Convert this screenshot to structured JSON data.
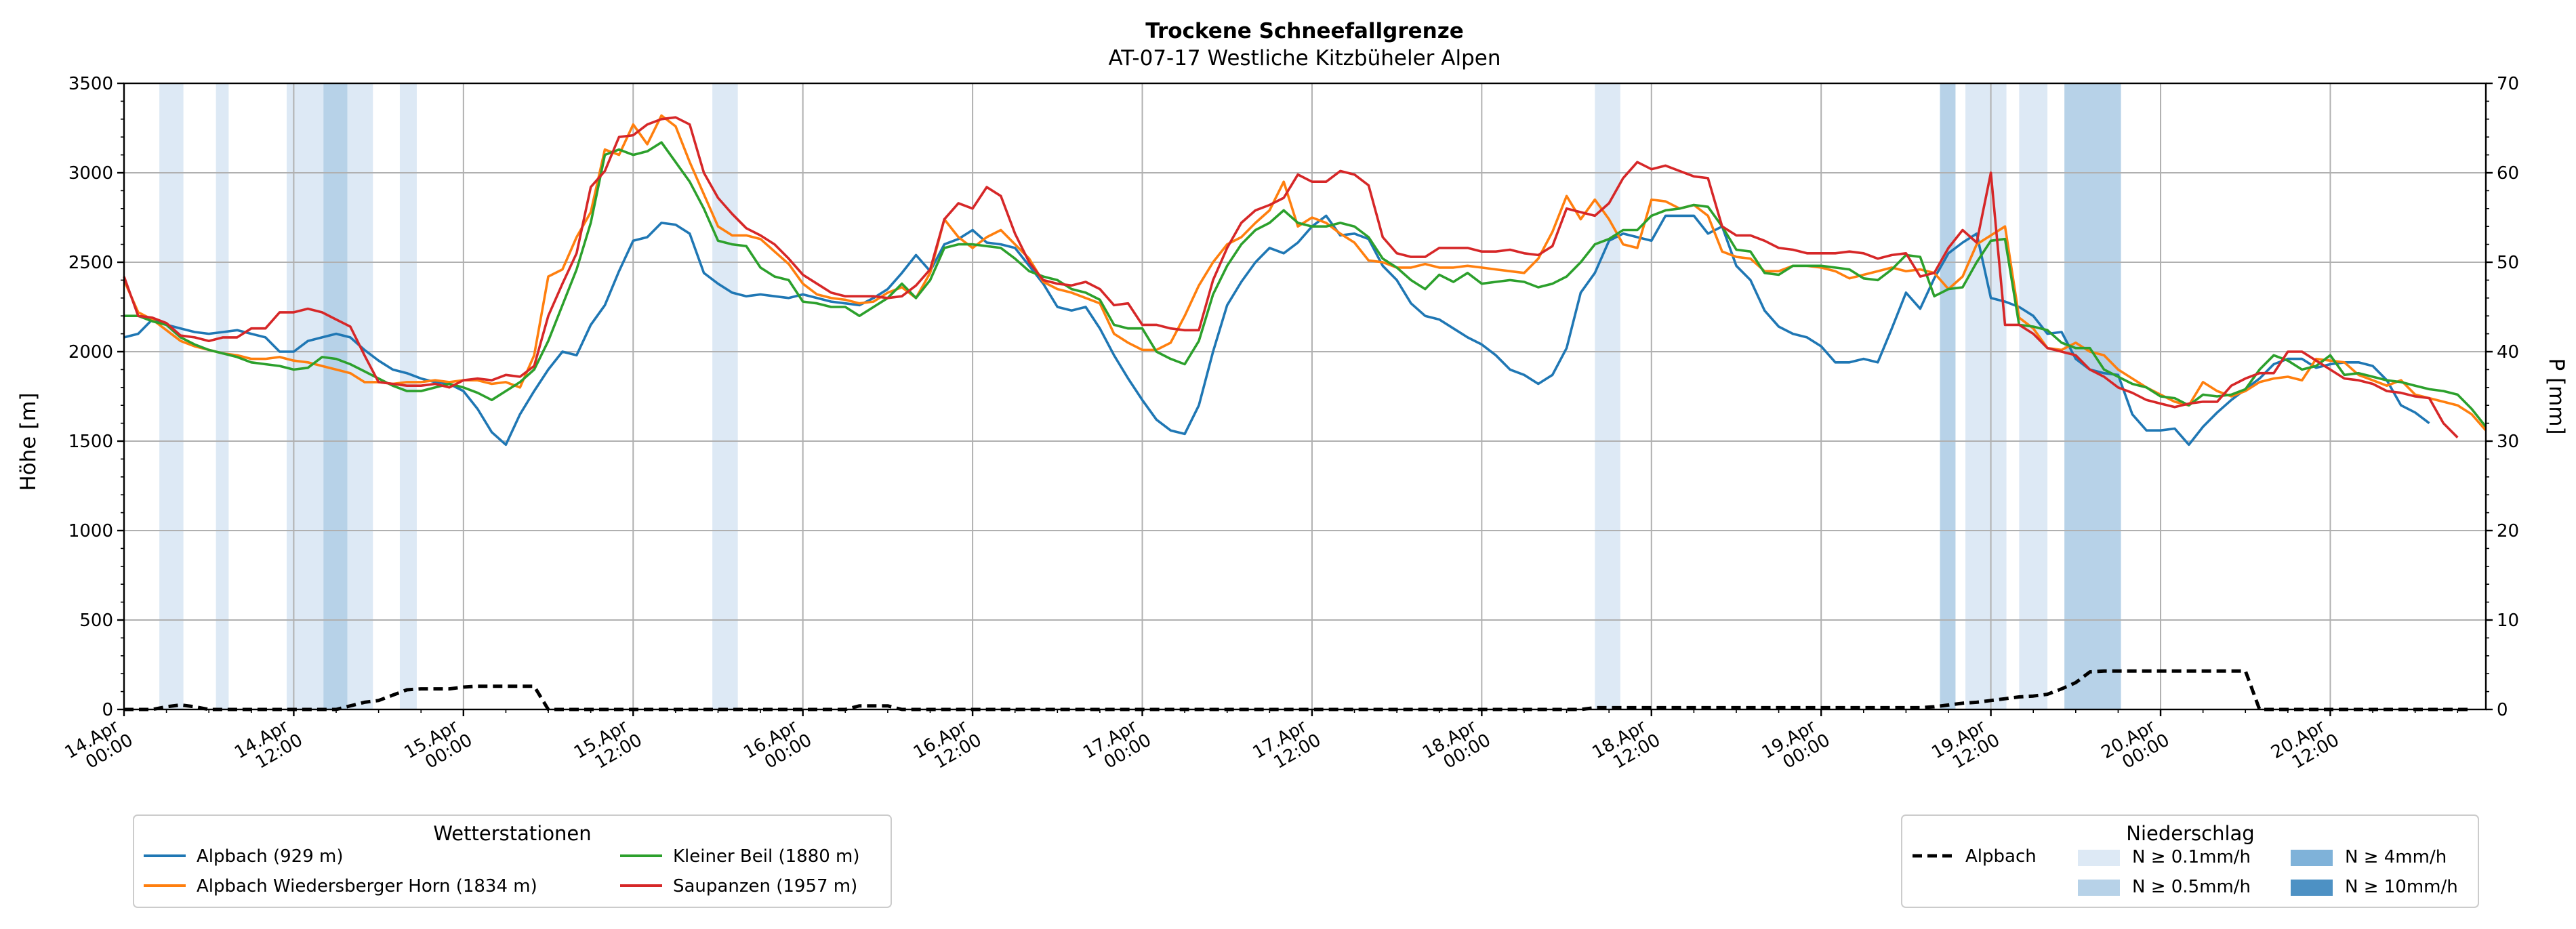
{
  "chart_data": {
    "type": "line",
    "title": "Trockene Schneefallgrenze",
    "subtitle": "AT-07-17 Westliche Kitzbüheler Alpen",
    "ylabel_left": "Höhe [m]",
    "ylabel_right": "P [mm]",
    "ylim_left": [
      0,
      3500
    ],
    "ylim_right": [
      0,
      70
    ],
    "yticks_left": [
      "0",
      "500",
      "1000",
      "1500",
      "2000",
      "2500",
      "3000",
      "3500"
    ],
    "yticks_right": [
      "0",
      "10",
      "20",
      "30",
      "40",
      "50",
      "60",
      "70"
    ],
    "x_start": "14.Apr 00:00",
    "x_step_hours": 1,
    "x_range_hours": [
      0,
      167
    ],
    "xtick_labels": [
      [
        "14.Apr",
        "00:00"
      ],
      [
        "14.Apr",
        "12:00"
      ],
      [
        "15.Apr",
        "00:00"
      ],
      [
        "15.Apr",
        "12:00"
      ],
      [
        "16.Apr",
        "00:00"
      ],
      [
        "16.Apr",
        "12:00"
      ],
      [
        "17.Apr",
        "00:00"
      ],
      [
        "17.Apr",
        "12:00"
      ],
      [
        "18.Apr",
        "00:00"
      ],
      [
        "18.Apr",
        "12:00"
      ],
      [
        "19.Apr",
        "00:00"
      ],
      [
        "19.Apr",
        "12:00"
      ],
      [
        "20.Apr",
        "00:00"
      ],
      [
        "20.Apr",
        "12:00"
      ]
    ],
    "grid": true,
    "series": [
      {
        "name": "Alpbach (929 m)",
        "color": "#1f77b4",
        "values": [
          2080,
          2100,
          2180,
          2150,
          2130,
          2110,
          2100,
          2110,
          2120,
          2100,
          2080,
          2000,
          2000,
          2060,
          2080,
          2100,
          2080,
          2010,
          1950,
          1900,
          1880,
          1850,
          1830,
          1820,
          1780,
          1680,
          1550,
          1480,
          1650,
          1780,
          1900,
          2000,
          1980,
          2150,
          2260,
          2450,
          2620,
          2640,
          2720,
          2710,
          2660,
          2440,
          2380,
          2330,
          2310,
          2320,
          2310,
          2300,
          2320,
          2300,
          2280,
          2270,
          2260,
          2300,
          2350,
          2440,
          2540,
          2450,
          2600,
          2630,
          2680,
          2610,
          2600,
          2580,
          2480,
          2380,
          2250,
          2230,
          2250,
          2130,
          1980,
          1850,
          1730,
          1620,
          1560,
          1540,
          1700,
          2000,
          2260,
          2390,
          2500,
          2580,
          2550,
          2610,
          2700,
          2760,
          2650,
          2660,
          2630,
          2480,
          2400,
          2270,
          2200,
          2180,
          2130,
          2080,
          2040,
          1980,
          1900,
          1870,
          1820,
          1870,
          2020,
          2330,
          2440,
          2620,
          2660,
          2640,
          2620,
          2760,
          2760,
          2760,
          2660,
          2700,
          2480,
          2400,
          2230,
          2140,
          2100,
          2080,
          2030,
          1940,
          1940,
          1960,
          1940,
          2130,
          2330,
          2240,
          2410,
          2550,
          2610,
          2660,
          2300,
          2280,
          2250,
          2200,
          2100,
          2110,
          1960,
          1900,
          1880,
          1870,
          1650,
          1560,
          1560,
          1570,
          1480,
          1580,
          1660,
          1730,
          1790,
          1850,
          1930,
          1960,
          1960,
          1910,
          1930,
          1940,
          1940,
          1920,
          1840,
          1700,
          1660,
          1600
        ]
      },
      {
        "name": "Alpbach Wiedersberger Horn (1834 m)",
        "color": "#ff7f0e",
        "values": [
          2400,
          2220,
          2180,
          2120,
          2060,
          2030,
          2010,
          1990,
          1980,
          1960,
          1960,
          1970,
          1950,
          1940,
          1920,
          1900,
          1880,
          1830,
          1830,
          1820,
          1830,
          1830,
          1840,
          1830,
          1840,
          1840,
          1820,
          1830,
          1800,
          1980,
          2420,
          2460,
          2640,
          2780,
          3130,
          3100,
          3270,
          3160,
          3320,
          3260,
          3060,
          2880,
          2700,
          2650,
          2650,
          2630,
          2560,
          2490,
          2380,
          2320,
          2300,
          2290,
          2270,
          2280,
          2330,
          2360,
          2300,
          2440,
          2740,
          2640,
          2580,
          2640,
          2680,
          2600,
          2520,
          2390,
          2350,
          2330,
          2300,
          2270,
          2100,
          2050,
          2010,
          2010,
          2050,
          2200,
          2370,
          2500,
          2600,
          2640,
          2720,
          2790,
          2950,
          2700,
          2750,
          2720,
          2660,
          2610,
          2510,
          2500,
          2470,
          2470,
          2490,
          2470,
          2470,
          2480,
          2470,
          2460,
          2450,
          2440,
          2520,
          2670,
          2870,
          2740,
          2850,
          2740,
          2600,
          2580,
          2850,
          2840,
          2800,
          2820,
          2760,
          2560,
          2530,
          2520,
          2450,
          2450,
          2480,
          2480,
          2470,
          2450,
          2410,
          2430,
          2450,
          2470,
          2450,
          2460,
          2440,
          2350,
          2420,
          2600,
          2650,
          2700,
          2190,
          2130,
          2020,
          2010,
          2050,
          2000,
          1980,
          1900,
          1850,
          1800,
          1760,
          1720,
          1700,
          1830,
          1780,
          1750,
          1780,
          1830,
          1850,
          1860,
          1840,
          1960,
          1950,
          1940,
          1870,
          1840,
          1810,
          1840,
          1760,
          1740,
          1720,
          1700,
          1650,
          1560
        ]
      },
      {
        "name": "Kleiner Beil (1880 m)",
        "color": "#2ca02c",
        "values": [
          2200,
          2200,
          2170,
          2150,
          2080,
          2040,
          2010,
          1990,
          1970,
          1940,
          1930,
          1920,
          1900,
          1910,
          1970,
          1960,
          1930,
          1890,
          1850,
          1810,
          1780,
          1780,
          1800,
          1820,
          1800,
          1770,
          1730,
          1780,
          1830,
          1900,
          2060,
          2260,
          2460,
          2720,
          3100,
          3130,
          3100,
          3120,
          3170,
          3060,
          2950,
          2800,
          2620,
          2600,
          2590,
          2470,
          2420,
          2400,
          2280,
          2270,
          2250,
          2250,
          2200,
          2250,
          2300,
          2380,
          2300,
          2400,
          2580,
          2600,
          2600,
          2590,
          2580,
          2520,
          2450,
          2420,
          2400,
          2350,
          2330,
          2290,
          2150,
          2130,
          2130,
          2000,
          1960,
          1930,
          2060,
          2320,
          2480,
          2600,
          2680,
          2720,
          2790,
          2720,
          2700,
          2700,
          2720,
          2700,
          2640,
          2520,
          2470,
          2400,
          2350,
          2430,
          2390,
          2440,
          2380,
          2390,
          2400,
          2390,
          2360,
          2380,
          2420,
          2500,
          2600,
          2630,
          2680,
          2680,
          2760,
          2790,
          2800,
          2820,
          2810,
          2700,
          2570,
          2560,
          2440,
          2430,
          2480,
          2480,
          2480,
          2470,
          2460,
          2410,
          2400,
          2460,
          2540,
          2530,
          2310,
          2350,
          2360,
          2500,
          2620,
          2630,
          2150,
          2140,
          2120,
          2050,
          2020,
          2020,
          1900,
          1860,
          1820,
          1800,
          1750,
          1740,
          1700,
          1760,
          1750,
          1760,
          1790,
          1900,
          1980,
          1950,
          1900,
          1920,
          1980,
          1870,
          1880,
          1860,
          1840,
          1830,
          1810,
          1790,
          1780,
          1760,
          1680,
          1580
        ]
      },
      {
        "name": "Saupanzen (1957 m)",
        "color": "#d62728",
        "values": [
          2420,
          2200,
          2190,
          2160,
          2090,
          2080,
          2060,
          2080,
          2080,
          2130,
          2130,
          2220,
          2220,
          2240,
          2220,
          2180,
          2140,
          1980,
          1830,
          1820,
          1810,
          1810,
          1820,
          1800,
          1840,
          1850,
          1840,
          1870,
          1860,
          1920,
          2200,
          2380,
          2550,
          2920,
          3010,
          3200,
          3210,
          3270,
          3300,
          3310,
          3270,
          3000,
          2860,
          2770,
          2690,
          2650,
          2600,
          2520,
          2430,
          2380,
          2330,
          2310,
          2310,
          2310,
          2300,
          2310,
          2370,
          2460,
          2740,
          2830,
          2800,
          2920,
          2870,
          2660,
          2500,
          2400,
          2380,
          2370,
          2390,
          2350,
          2260,
          2270,
          2150,
          2150,
          2130,
          2120,
          2120,
          2400,
          2580,
          2720,
          2790,
          2820,
          2860,
          2990,
          2950,
          2950,
          3010,
          2990,
          2930,
          2640,
          2550,
          2530,
          2530,
          2580,
          2580,
          2580,
          2560,
          2560,
          2570,
          2550,
          2540,
          2590,
          2800,
          2780,
          2760,
          2830,
          2970,
          3060,
          3020,
          3040,
          3010,
          2980,
          2970,
          2700,
          2650,
          2650,
          2620,
          2580,
          2570,
          2550,
          2550,
          2550,
          2560,
          2550,
          2520,
          2540,
          2550,
          2420,
          2440,
          2580,
          2680,
          2610,
          3000,
          2150,
          2150,
          2100,
          2020,
          2000,
          1980,
          1900,
          1860,
          1800,
          1770,
          1730,
          1710,
          1690,
          1710,
          1720,
          1720,
          1810,
          1850,
          1880,
          1880,
          2000,
          2000,
          1950,
          1900,
          1850,
          1840,
          1820,
          1780,
          1770,
          1750,
          1740,
          1600,
          1520
        ]
      },
      {
        "name": "Alpbach",
        "axis": "right",
        "style": "dashed",
        "color": "#000000",
        "values": [
          0,
          0,
          0,
          0.3,
          0.5,
          0.3,
          0,
          0,
          0,
          0,
          0,
          0,
          0,
          0,
          0,
          0,
          0.4,
          0.8,
          1,
          1.6,
          2.2,
          2.3,
          2.3,
          2.3,
          2.5,
          2.6,
          2.6,
          2.6,
          2.6,
          2.6,
          0,
          0,
          0,
          0,
          0,
          0,
          0,
          0,
          0,
          0,
          0,
          0,
          0,
          0,
          0,
          0,
          0,
          0,
          0,
          0,
          0,
          0,
          0.4,
          0.4,
          0.4,
          0,
          0,
          0,
          0,
          0,
          0,
          0,
          0,
          0,
          0,
          0,
          0,
          0,
          0,
          0,
          0,
          0,
          0,
          0,
          0,
          0,
          0,
          0,
          0,
          0,
          0,
          0,
          0,
          0,
          0,
          0,
          0,
          0,
          0,
          0,
          0,
          0,
          0,
          0,
          0,
          0,
          0,
          0,
          0,
          0,
          0,
          0,
          0,
          0,
          0.2,
          0.2,
          0.2,
          0.2,
          0.2,
          0.2,
          0.2,
          0.2,
          0.2,
          0.2,
          0.2,
          0.2,
          0.2,
          0.2,
          0.2,
          0.2,
          0.2,
          0.2,
          0.2,
          0.2,
          0.2,
          0.2,
          0.2,
          0.2,
          0.3,
          0.5,
          0.7,
          0.8,
          1,
          1.2,
          1.4,
          1.5,
          1.7,
          2.3,
          3,
          4.2,
          4.3,
          4.3,
          4.3,
          4.3,
          4.3,
          4.3,
          4.3,
          4.3,
          4.3,
          4.3,
          4.3,
          0,
          0,
          0,
          0,
          0,
          0,
          0,
          0,
          0,
          0,
          0,
          0,
          0,
          0,
          0,
          0
        ]
      }
    ],
    "precip_bands": [
      {
        "start": 2.5,
        "end": 4.2,
        "level": "N ≥ 0.1mm/h"
      },
      {
        "start": 6.5,
        "end": 7.4,
        "level": "N ≥ 0.1mm/h"
      },
      {
        "start": 11.5,
        "end": 14.1,
        "level": "N ≥ 0.1mm/h"
      },
      {
        "start": 14.1,
        "end": 15.8,
        "level": "N ≥ 0.5mm/h"
      },
      {
        "start": 15.8,
        "end": 17.6,
        "level": "N ≥ 0.1mm/h"
      },
      {
        "start": 19.5,
        "end": 20.7,
        "level": "N ≥ 0.1mm/h"
      },
      {
        "start": 41.6,
        "end": 43.4,
        "level": "N ≥ 0.1mm/h"
      },
      {
        "start": 104,
        "end": 105.8,
        "level": "N ≥ 0.1mm/h"
      },
      {
        "start": 128.4,
        "end": 129.5,
        "level": "N ≥ 0.5mm/h"
      },
      {
        "start": 130.2,
        "end": 131.9,
        "level": "N ≥ 0.1mm/h"
      },
      {
        "start": 131.9,
        "end": 133.1,
        "level": "N ≥ 0.1mm/h"
      },
      {
        "start": 134,
        "end": 136,
        "level": "N ≥ 0.1mm/h"
      },
      {
        "start": 137.2,
        "end": 141.2,
        "level": "N ≥ 0.5mm/h"
      }
    ],
    "legend_stations": {
      "title": "Wetterstationen",
      "placement": "bottom-left",
      "entries": [
        "Alpbach (929 m)",
        "Alpbach Wiedersberger Horn (1834 m)",
        "Kleiner Beil (1880 m)",
        "Saupanzen (1957 m)"
      ]
    },
    "legend_precip": {
      "title": "Niederschlag",
      "placement": "bottom-right",
      "line_entry": "Alpbach",
      "levels": [
        {
          "label": "N ≥ 0.1mm/h",
          "color": "#dde9f5"
        },
        {
          "label": "N ≥ 0.5mm/h",
          "color": "#b7d2e8"
        },
        {
          "label": "N ≥ 4mm/h",
          "color": "#7fb2d9"
        },
        {
          "label": "N ≥ 10mm/h",
          "color": "#4d91c4"
        }
      ]
    }
  }
}
